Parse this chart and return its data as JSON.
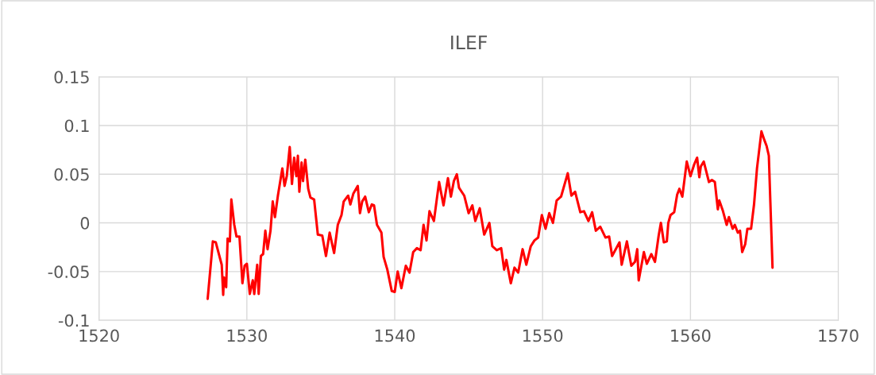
{
  "chart_data": {
    "type": "line",
    "title": "ILEF",
    "xlim": [
      1520,
      1570
    ],
    "xticks": [
      1520,
      1530,
      1540,
      1550,
      1560,
      1570
    ],
    "ylim": [
      -0.1,
      0.15
    ],
    "yticks": [
      -0.1,
      -0.05,
      0,
      0.05,
      0.1,
      0.15
    ],
    "grid": true,
    "marker": "none",
    "line_style": "solid",
    "series": [
      {
        "color": "#ff0000",
        "x": [
          1527.35,
          1527.7,
          1527.9,
          1528.3,
          1528.4,
          1528.45,
          1528.6,
          1528.7,
          1528.85,
          1528.95,
          1529.15,
          1529.3,
          1529.5,
          1529.7,
          1529.85,
          1530.0,
          1530.2,
          1530.4,
          1530.5,
          1530.7,
          1530.8,
          1530.95,
          1531.1,
          1531.25,
          1531.4,
          1531.6,
          1531.75,
          1531.9,
          1532.1,
          1532.4,
          1532.55,
          1532.7,
          1532.9,
          1533.05,
          1533.2,
          1533.35,
          1533.45,
          1533.55,
          1533.7,
          1533.8,
          1533.95,
          1534.15,
          1534.3,
          1534.55,
          1534.8,
          1535.1,
          1535.35,
          1535.6,
          1535.9,
          1536.15,
          1536.4,
          1536.55,
          1536.85,
          1537.0,
          1537.2,
          1537.5,
          1537.65,
          1537.8,
          1538.0,
          1538.25,
          1538.45,
          1538.6,
          1538.8,
          1539.1,
          1539.25,
          1539.5,
          1539.8,
          1540.0,
          1540.2,
          1540.45,
          1540.75,
          1541.0,
          1541.25,
          1541.5,
          1541.75,
          1541.95,
          1542.15,
          1542.35,
          1542.65,
          1543.0,
          1543.3,
          1543.6,
          1543.8,
          1544.0,
          1544.2,
          1544.35,
          1544.7,
          1545.0,
          1545.25,
          1545.45,
          1545.75,
          1546.05,
          1546.4,
          1546.6,
          1546.9,
          1547.2,
          1547.4,
          1547.55,
          1547.85,
          1548.1,
          1548.35,
          1548.65,
          1548.9,
          1549.2,
          1549.45,
          1549.7,
          1549.95,
          1550.2,
          1550.45,
          1550.7,
          1550.95,
          1551.25,
          1551.7,
          1551.95,
          1552.2,
          1552.55,
          1552.8,
          1553.1,
          1553.35,
          1553.6,
          1553.9,
          1554.25,
          1554.5,
          1554.7,
          1555.2,
          1555.35,
          1555.7,
          1556.0,
          1556.25,
          1556.4,
          1556.5,
          1556.85,
          1557.05,
          1557.35,
          1557.6,
          1557.85,
          1558.0,
          1558.2,
          1558.4,
          1558.5,
          1558.65,
          1558.9,
          1559.1,
          1559.25,
          1559.45,
          1559.75,
          1560.0,
          1560.25,
          1560.45,
          1560.6,
          1560.7,
          1560.9,
          1561.25,
          1561.45,
          1561.65,
          1561.85,
          1561.95,
          1562.2,
          1562.45,
          1562.6,
          1562.85,
          1563.0,
          1563.2,
          1563.35,
          1563.5,
          1563.7,
          1563.85,
          1564.1,
          1564.3,
          1564.5,
          1564.8,
          1565.0,
          1565.15,
          1565.3,
          1565.55
        ],
        "values": [
          -0.078,
          -0.019,
          -0.02,
          -0.043,
          -0.074,
          -0.056,
          -0.066,
          -0.016,
          -0.019,
          0.024,
          -0.002,
          -0.014,
          -0.014,
          -0.062,
          -0.044,
          -0.042,
          -0.073,
          -0.059,
          -0.073,
          -0.043,
          -0.073,
          -0.034,
          -0.032,
          -0.008,
          -0.027,
          -0.008,
          0.022,
          0.006,
          0.028,
          0.056,
          0.038,
          0.048,
          0.078,
          0.04,
          0.067,
          0.048,
          0.069,
          0.032,
          0.062,
          0.043,
          0.065,
          0.035,
          0.026,
          0.024,
          -0.012,
          -0.013,
          -0.034,
          -0.01,
          -0.031,
          -0.002,
          0.008,
          0.022,
          0.028,
          0.019,
          0.03,
          0.038,
          0.01,
          0.022,
          0.027,
          0.011,
          0.019,
          0.018,
          -0.002,
          -0.01,
          -0.035,
          -0.048,
          -0.07,
          -0.071,
          -0.05,
          -0.067,
          -0.044,
          -0.051,
          -0.03,
          -0.026,
          -0.028,
          -0.002,
          -0.018,
          0.012,
          0.002,
          0.042,
          0.018,
          0.046,
          0.027,
          0.043,
          0.05,
          0.036,
          0.028,
          0.01,
          0.018,
          0.002,
          0.015,
          -0.012,
          0.0,
          -0.024,
          -0.028,
          -0.026,
          -0.048,
          -0.038,
          -0.062,
          -0.046,
          -0.051,
          -0.027,
          -0.043,
          -0.024,
          -0.018,
          -0.015,
          0.008,
          -0.006,
          0.01,
          0.0,
          0.023,
          0.027,
          0.051,
          0.028,
          0.032,
          0.011,
          0.012,
          0.002,
          0.011,
          -0.008,
          -0.004,
          -0.015,
          -0.014,
          -0.034,
          -0.02,
          -0.043,
          -0.019,
          -0.044,
          -0.04,
          -0.027,
          -0.059,
          -0.03,
          -0.042,
          -0.032,
          -0.04,
          -0.013,
          0.0,
          -0.02,
          -0.019,
          0.0,
          0.008,
          0.011,
          0.029,
          0.035,
          0.027,
          0.063,
          0.048,
          0.06,
          0.067,
          0.047,
          0.058,
          0.063,
          0.042,
          0.044,
          0.042,
          0.014,
          0.023,
          0.012,
          -0.002,
          0.006,
          -0.006,
          -0.002,
          -0.01,
          -0.008,
          -0.03,
          -0.022,
          -0.006,
          -0.006,
          0.019,
          0.056,
          0.094,
          0.085,
          0.079,
          0.069,
          -0.046
        ]
      }
    ]
  }
}
